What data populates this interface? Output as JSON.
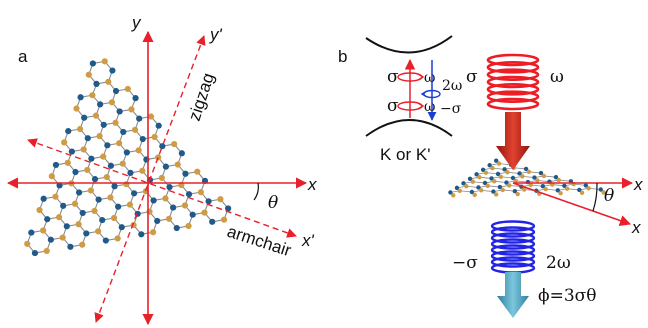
{
  "panels": {
    "a": {
      "label": "a",
      "axes": {
        "x": "x",
        "y": "y",
        "x_prime": "x'",
        "y_prime": "y'"
      },
      "labels": {
        "zigzag": "zigzag",
        "armchair": "armchair",
        "theta": "θ"
      }
    },
    "b": {
      "label": "b",
      "band_diagram": {
        "sigma_top": "σ",
        "omega_top": "ω",
        "sigma_bottom": "σ",
        "omega_bottom": "ω",
        "two_omega": "2ω",
        "minus_sigma": "−σ",
        "valley": "K or K'"
      },
      "input_beam": {
        "polarization": "σ",
        "frequency": "ω"
      },
      "output_beam": {
        "polarization": "−σ",
        "frequency": "2ω"
      },
      "axes": {
        "x_top": "x",
        "x_bottom": "x",
        "theta": "θ"
      },
      "phase_formula": "ϕ=3σθ"
    }
  },
  "colors": {
    "axis": "#e8202a",
    "atom_blue": "#1f5a8a",
    "atom_gold": "#cf9b45",
    "bond": "#8a8a8a",
    "input_coil": "#ee1c24",
    "output_coil": "#2323e6",
    "input_arrow": "#cc2418",
    "output_arrow": "#4aa6c4",
    "band_transition_red": "#e8202a",
    "band_transition_blue": "#1a3dd6"
  }
}
